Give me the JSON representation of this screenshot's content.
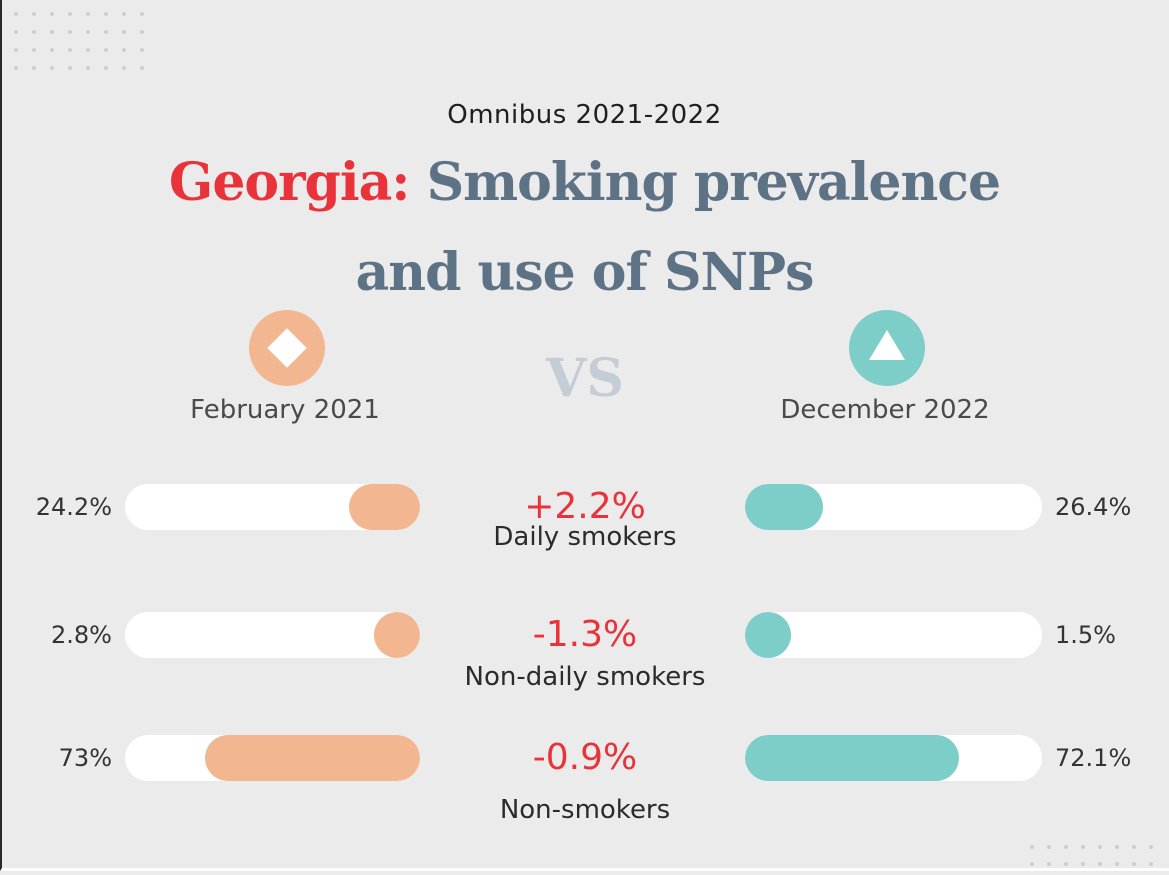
{
  "header": {
    "subtitle": "Omnibus 2021-2022",
    "title_highlight": "Georgia:",
    "title_line1_rest": " Smoking prevalence",
    "title_line2": "and use of SNPs"
  },
  "comparison": {
    "left_period": "February 2021",
    "right_period": "December 2022",
    "vs_label": "VS"
  },
  "icons": {
    "left": "diamond-icon",
    "right": "triangle-icon"
  },
  "colors": {
    "highlight": "#e8333a",
    "title": "#5e7286",
    "left_series": "#f2b790",
    "right_series": "#7dcdc8",
    "vs": "#c4cdd6"
  },
  "chart_data": {
    "type": "bar",
    "categories": [
      "Daily smokers",
      "Non-daily smokers",
      "Non-smokers"
    ],
    "series": [
      {
        "name": "February 2021",
        "values": [
          24.2,
          2.8,
          73
        ],
        "labels": [
          "24.2%",
          "2.8%",
          "73%"
        ]
      },
      {
        "name": "December 2022",
        "values": [
          26.4,
          1.5,
          72.1
        ],
        "labels": [
          "26.4%",
          "1.5%",
          "72.1%"
        ]
      }
    ],
    "changes": [
      "+2.2%",
      "-1.3%",
      "-0.9%"
    ],
    "ylim": [
      0,
      100
    ]
  }
}
